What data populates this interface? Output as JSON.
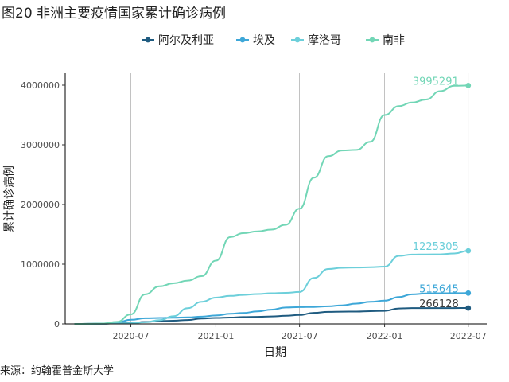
{
  "figure": {
    "title": "图20 非洲主要疫情国家累计确诊病例",
    "source": "来源：约翰霍普金斯大学"
  },
  "colors": {
    "阿尔及利亚": "#1f5b80",
    "埃及": "#3da7d8",
    "摩洛哥": "#6ccfda",
    "南非": "#72d6b6"
  },
  "chart_data": {
    "type": "line",
    "xlabel": "日期",
    "ylabel": "累计确诊病例",
    "x_ticks": [
      "2020-07",
      "2021-01",
      "2021-07",
      "2022-01",
      "2022-07"
    ],
    "y_ticks": [
      "0",
      "1000000",
      "2000000",
      "3000000",
      "4000000"
    ],
    "ylim": [
      0,
      4200000
    ],
    "xlim": [
      "2020-02-10",
      "2022-08-10"
    ],
    "legend_position": "top",
    "grid": "vertical major gridlines",
    "x": [
      "2020-03-01",
      "2020-04-01",
      "2020-05-01",
      "2020-06-01",
      "2020-07-01",
      "2020-08-01",
      "2020-09-01",
      "2020-10-01",
      "2020-11-01",
      "2020-12-01",
      "2021-01-01",
      "2021-02-01",
      "2021-03-01",
      "2021-04-01",
      "2021-05-01",
      "2021-06-01",
      "2021-07-01",
      "2021-08-01",
      "2021-09-01",
      "2021-10-01",
      "2021-11-01",
      "2021-12-01",
      "2022-01-01",
      "2022-02-01",
      "2022-03-01",
      "2022-04-01",
      "2022-05-01",
      "2022-06-01",
      "2022-07-01"
    ],
    "series": [
      {
        "name": "阿尔及利亚",
        "values": [
          0,
          1000,
          4000,
          11000,
          14000,
          33000,
          48000,
          53000,
          66000,
          89000,
          100000,
          107000,
          114000,
          119000,
          125000,
          136000,
          150000,
          185000,
          201000,
          205000,
          207000,
          213000,
          218000,
          258000,
          265000,
          265000,
          266000,
          266000,
          266128
        ],
        "end_label": "266128"
      },
      {
        "name": "埃及",
        "values": [
          0,
          700,
          5500,
          25000,
          69000,
          95000,
          100000,
          103000,
          109000,
          122000,
          142000,
          170000,
          183000,
          210000,
          238000,
          274000,
          281000,
          284000,
          295000,
          311000,
          340000,
          370000,
          390000,
          450000,
          495000,
          510000,
          513000,
          514000,
          515645
        ],
        "end_label": "515645"
      },
      {
        "name": "摩洛哥",
        "values": [
          0,
          600,
          5000,
          8000,
          12000,
          28000,
          63000,
          128000,
          263000,
          370000,
          440000,
          470000,
          485000,
          500000,
          513000,
          520000,
          535000,
          770000,
          920000,
          940000,
          945000,
          949000,
          960000,
          1140000,
          1162000,
          1164000,
          1165000,
          1180000,
          1225305
        ],
        "end_label": "1225305"
      },
      {
        "name": "南非",
        "values": [
          0,
          1400,
          6000,
          34000,
          160000,
          495000,
          630000,
          680000,
          725000,
          800000,
          1060000,
          1455000,
          1520000,
          1550000,
          1580000,
          1660000,
          1930000,
          2450000,
          2810000,
          2905000,
          2915000,
          3050000,
          3500000,
          3650000,
          3710000,
          3760000,
          3900000,
          3990000,
          3995291
        ],
        "end_label": "3995291"
      }
    ]
  }
}
